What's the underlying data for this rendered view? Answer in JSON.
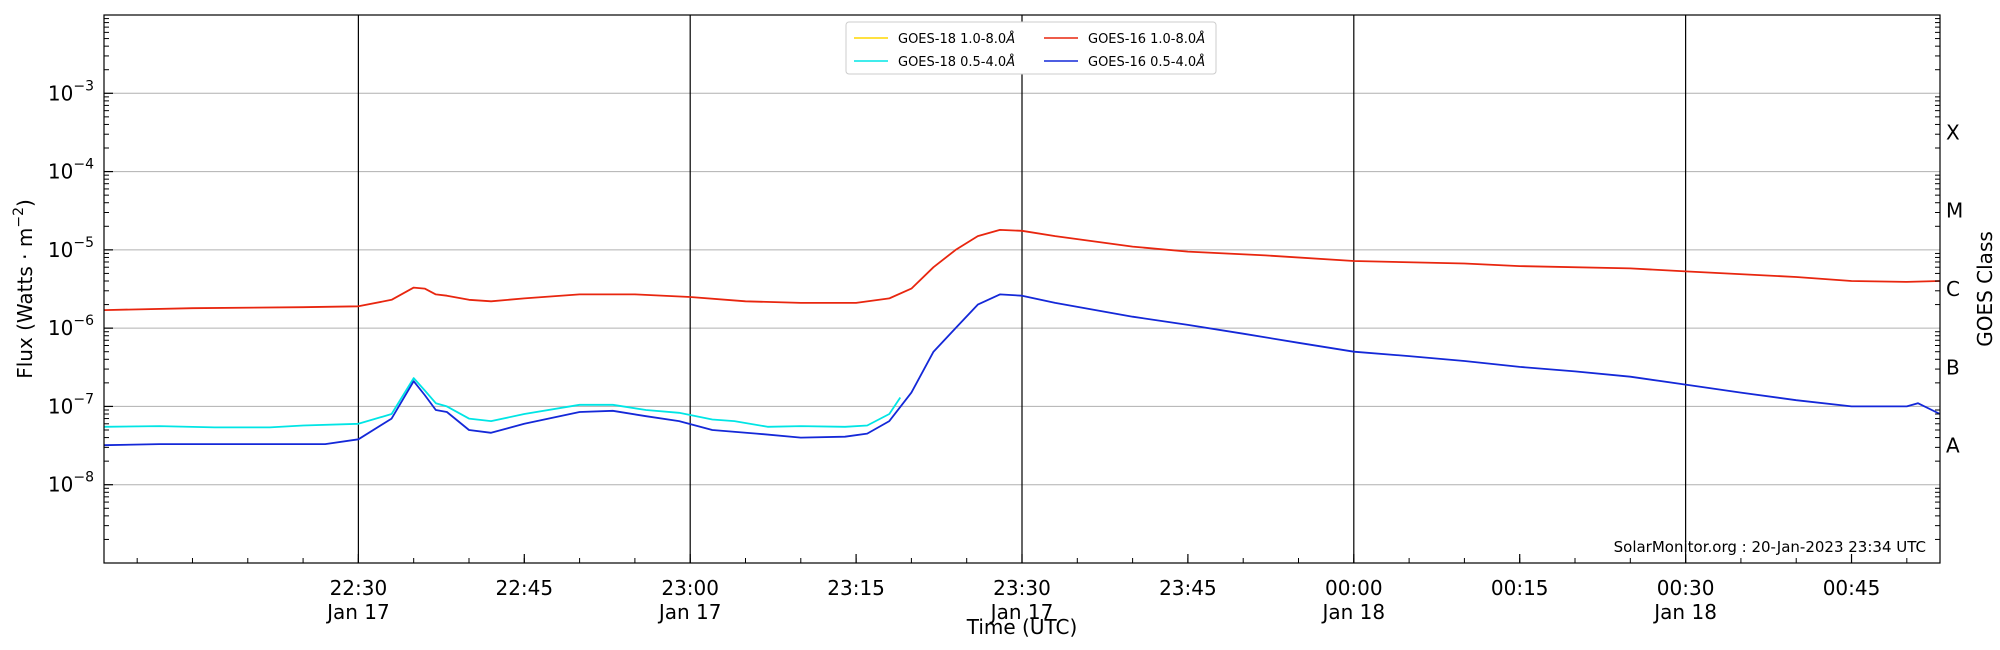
{
  "chart_data": {
    "type": "line",
    "xlabel": "Time (UTC)",
    "ylabel": "Flux (Watts · m",
    "ylabel_sup": "−2",
    "ylabel_close": ")",
    "y2label": "GOES Class",
    "y_scale": "log",
    "ylim": [
      1e-09,
      0.01
    ],
    "xlim": [
      "2023-01-17T22:07",
      "2023-01-18T00:53"
    ],
    "grid": {
      "x": "major-ticks",
      "y": true
    },
    "legend_placement": "top-center",
    "credit": "SolarMonitor.org : 20-Jan-2023 23:34 UTC",
    "y_ticks": [
      {
        "value": 1e-08,
        "base": "10",
        "exp": "−8"
      },
      {
        "value": 1e-07,
        "base": "10",
        "exp": "−7"
      },
      {
        "value": 1e-06,
        "base": "10",
        "exp": "−6"
      },
      {
        "value": 1e-05,
        "base": "10",
        "exp": "−5"
      },
      {
        "value": 0.0001,
        "base": "10",
        "exp": "−4"
      },
      {
        "value": 0.001,
        "base": "10",
        "exp": "−3"
      }
    ],
    "x_ticks": [
      {
        "time": "2023-01-17T22:30",
        "label": "22:30",
        "sublabel": "Jan 17",
        "vline": true
      },
      {
        "time": "2023-01-17T22:45",
        "label": "22:45",
        "sublabel": "",
        "vline": false
      },
      {
        "time": "2023-01-17T23:00",
        "label": "23:00",
        "sublabel": "Jan 17",
        "vline": true
      },
      {
        "time": "2023-01-17T23:15",
        "label": "23:15",
        "sublabel": "",
        "vline": false
      },
      {
        "time": "2023-01-17T23:30",
        "label": "23:30",
        "sublabel": "Jan 17",
        "vline": true
      },
      {
        "time": "2023-01-17T23:45",
        "label": "23:45",
        "sublabel": "",
        "vline": false
      },
      {
        "time": "2023-01-18T00:00",
        "label": "00:00",
        "sublabel": "Jan 18",
        "vline": true
      },
      {
        "time": "2023-01-18T00:15",
        "label": "00:15",
        "sublabel": "",
        "vline": false
      },
      {
        "time": "2023-01-18T00:30",
        "label": "00:30",
        "sublabel": "Jan 18",
        "vline": true
      },
      {
        "time": "2023-01-18T00:45",
        "label": "00:45",
        "sublabel": "",
        "vline": false
      }
    ],
    "class_labels": [
      {
        "label": "A",
        "value": 3.16e-08
      },
      {
        "label": "B",
        "value": 3.16e-07
      },
      {
        "label": "C",
        "value": 3.16e-06
      },
      {
        "label": "M",
        "value": 3.16e-05
      },
      {
        "label": "X",
        "value": 0.000316
      }
    ],
    "series": [
      {
        "name": "GOES-18 1.0-8.0",
        "unit": "Å",
        "color": "#ffd700",
        "points": []
      },
      {
        "name": "GOES-18 0.5-4.0",
        "unit": "Å",
        "color": "#00e5e5",
        "points": [
          [
            "2023-01-17T22:07",
            5.5e-08
          ],
          [
            "2023-01-17T22:12",
            5.6e-08
          ],
          [
            "2023-01-17T22:17",
            5.4e-08
          ],
          [
            "2023-01-17T22:22",
            5.4e-08
          ],
          [
            "2023-01-17T22:25",
            5.7e-08
          ],
          [
            "2023-01-17T22:30",
            6e-08
          ],
          [
            "2023-01-17T22:33",
            8e-08
          ],
          [
            "2023-01-17T22:35",
            2.3e-07
          ],
          [
            "2023-01-17T22:36",
            1.6e-07
          ],
          [
            "2023-01-17T22:37",
            1.1e-07
          ],
          [
            "2023-01-17T22:38",
            1e-07
          ],
          [
            "2023-01-17T22:40",
            7e-08
          ],
          [
            "2023-01-17T22:42",
            6.5e-08
          ],
          [
            "2023-01-17T22:45",
            8e-08
          ],
          [
            "2023-01-17T22:50",
            1.05e-07
          ],
          [
            "2023-01-17T22:53",
            1.05e-07
          ],
          [
            "2023-01-17T22:56",
            9e-08
          ],
          [
            "2023-01-17T22:59",
            8.3e-08
          ],
          [
            "2023-01-17T23:02",
            6.8e-08
          ],
          [
            "2023-01-17T23:04",
            6.5e-08
          ],
          [
            "2023-01-17T23:07",
            5.5e-08
          ],
          [
            "2023-01-17T23:10",
            5.6e-08
          ],
          [
            "2023-01-17T23:14",
            5.5e-08
          ],
          [
            "2023-01-17T23:16",
            5.7e-08
          ],
          [
            "2023-01-17T23:18",
            8e-08
          ],
          [
            "2023-01-17T23:19",
            1.3e-07
          ]
        ]
      },
      {
        "name": "GOES-16 1.0-8.0",
        "unit": "Å",
        "color": "#e8260f",
        "points": [
          [
            "2023-01-17T22:07",
            1.7e-06
          ],
          [
            "2023-01-17T22:15",
            1.8e-06
          ],
          [
            "2023-01-17T22:25",
            1.85e-06
          ],
          [
            "2023-01-17T22:30",
            1.9e-06
          ],
          [
            "2023-01-17T22:33",
            2.3e-06
          ],
          [
            "2023-01-17T22:35",
            3.3e-06
          ],
          [
            "2023-01-17T22:36",
            3.2e-06
          ],
          [
            "2023-01-17T22:37",
            2.7e-06
          ],
          [
            "2023-01-17T22:38",
            2.6e-06
          ],
          [
            "2023-01-17T22:40",
            2.3e-06
          ],
          [
            "2023-01-17T22:42",
            2.2e-06
          ],
          [
            "2023-01-17T22:45",
            2.4e-06
          ],
          [
            "2023-01-17T22:50",
            2.7e-06
          ],
          [
            "2023-01-17T22:55",
            2.7e-06
          ],
          [
            "2023-01-17T23:00",
            2.5e-06
          ],
          [
            "2023-01-17T23:05",
            2.2e-06
          ],
          [
            "2023-01-17T23:10",
            2.1e-06
          ],
          [
            "2023-01-17T23:15",
            2.1e-06
          ],
          [
            "2023-01-17T23:18",
            2.4e-06
          ],
          [
            "2023-01-17T23:20",
            3.2e-06
          ],
          [
            "2023-01-17T23:22",
            6e-06
          ],
          [
            "2023-01-17T23:24",
            1e-05
          ],
          [
            "2023-01-17T23:26",
            1.5e-05
          ],
          [
            "2023-01-17T23:28",
            1.8e-05
          ],
          [
            "2023-01-17T23:30",
            1.75e-05
          ],
          [
            "2023-01-17T23:33",
            1.5e-05
          ],
          [
            "2023-01-17T23:40",
            1.1e-05
          ],
          [
            "2023-01-17T23:45",
            9.5e-06
          ],
          [
            "2023-01-17T23:52",
            8.5e-06
          ],
          [
            "2023-01-18T00:00",
            7.2e-06
          ],
          [
            "2023-01-18T00:10",
            6.7e-06
          ],
          [
            "2023-01-18T00:15",
            6.2e-06
          ],
          [
            "2023-01-18T00:25",
            5.8e-06
          ],
          [
            "2023-01-18T00:30",
            5.3e-06
          ],
          [
            "2023-01-18T00:40",
            4.5e-06
          ],
          [
            "2023-01-18T00:45",
            4e-06
          ],
          [
            "2023-01-18T00:50",
            3.9e-06
          ],
          [
            "2023-01-18T00:53",
            4e-06
          ]
        ]
      },
      {
        "name": "GOES-16 0.5-4.0",
        "unit": "Å",
        "color": "#1428d8",
        "points": [
          [
            "2023-01-17T22:07",
            3.2e-08
          ],
          [
            "2023-01-17T22:12",
            3.3e-08
          ],
          [
            "2023-01-17T22:17",
            3.3e-08
          ],
          [
            "2023-01-17T22:22",
            3.3e-08
          ],
          [
            "2023-01-17T22:27",
            3.3e-08
          ],
          [
            "2023-01-17T22:30",
            3.8e-08
          ],
          [
            "2023-01-17T22:33",
            7e-08
          ],
          [
            "2023-01-17T22:35",
            2.1e-07
          ],
          [
            "2023-01-17T22:36",
            1.4e-07
          ],
          [
            "2023-01-17T22:37",
            9e-08
          ],
          [
            "2023-01-17T22:38",
            8.5e-08
          ],
          [
            "2023-01-17T22:40",
            5e-08
          ],
          [
            "2023-01-17T22:42",
            4.6e-08
          ],
          [
            "2023-01-17T22:45",
            6e-08
          ],
          [
            "2023-01-17T22:50",
            8.5e-08
          ],
          [
            "2023-01-17T22:53",
            8.8e-08
          ],
          [
            "2023-01-17T22:56",
            7.5e-08
          ],
          [
            "2023-01-17T22:59",
            6.5e-08
          ],
          [
            "2023-01-17T23:02",
            5e-08
          ],
          [
            "2023-01-17T23:06",
            4.5e-08
          ],
          [
            "2023-01-17T23:10",
            4e-08
          ],
          [
            "2023-01-17T23:14",
            4.1e-08
          ],
          [
            "2023-01-17T23:16",
            4.5e-08
          ],
          [
            "2023-01-17T23:18",
            6.5e-08
          ],
          [
            "2023-01-17T23:20",
            1.5e-07
          ],
          [
            "2023-01-17T23:22",
            5e-07
          ],
          [
            "2023-01-17T23:24",
            1e-06
          ],
          [
            "2023-01-17T23:26",
            2e-06
          ],
          [
            "2023-01-17T23:28",
            2.7e-06
          ],
          [
            "2023-01-17T23:30",
            2.6e-06
          ],
          [
            "2023-01-17T23:33",
            2.1e-06
          ],
          [
            "2023-01-17T23:40",
            1.4e-06
          ],
          [
            "2023-01-17T23:45",
            1.1e-06
          ],
          [
            "2023-01-17T23:50",
            8.5e-07
          ],
          [
            "2023-01-17T23:55",
            6.5e-07
          ],
          [
            "2023-01-18T00:00",
            5e-07
          ],
          [
            "2023-01-18T00:05",
            4.4e-07
          ],
          [
            "2023-01-18T00:10",
            3.8e-07
          ],
          [
            "2023-01-18T00:15",
            3.2e-07
          ],
          [
            "2023-01-18T00:20",
            2.8e-07
          ],
          [
            "2023-01-18T00:25",
            2.4e-07
          ],
          [
            "2023-01-18T00:30",
            1.9e-07
          ],
          [
            "2023-01-18T00:35",
            1.5e-07
          ],
          [
            "2023-01-18T00:40",
            1.2e-07
          ],
          [
            "2023-01-18T00:45",
            1e-07
          ],
          [
            "2023-01-18T00:50",
            1e-07
          ],
          [
            "2023-01-18T00:51",
            1.1e-07
          ],
          [
            "2023-01-18T00:53",
            8e-08
          ]
        ]
      }
    ]
  }
}
